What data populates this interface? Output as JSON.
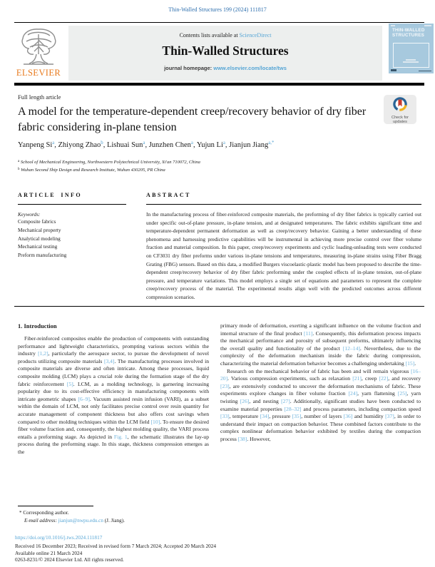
{
  "page": {
    "journal_citation": "Thin-Walled Structures 199 (2024) 111817"
  },
  "banner": {
    "contents_prefix": "Contents lists available at ",
    "sciencedirect_link": "ScienceDirect",
    "journal_title": "Thin-Walled Structures",
    "homepage_prefix": "journal homepage: ",
    "homepage_url": "www.elsevier.com/locate/tws",
    "elsevier_label": "ELSEVIER",
    "cover": {
      "title_line1": "THIN-WALLED",
      "title_line2": "STRUCTURES"
    }
  },
  "badge": {
    "line1": "Check for",
    "line2": "updates"
  },
  "article": {
    "type_label": "Full length article",
    "title": "A model for the temperature-dependent creep/recovery behavior of dry fiber fabric considering in-plane tension",
    "authors": [
      {
        "name": "Yanpeng Si",
        "sup": "a",
        "sep": ", "
      },
      {
        "name": "Zhiyong Zhao",
        "sup": "b",
        "sep": ", "
      },
      {
        "name": "Lishuai Sun",
        "sup": "a",
        "sep": ", "
      },
      {
        "name": "Junzhen Chen",
        "sup": "a",
        "sep": ", "
      },
      {
        "name": "Yujun Li",
        "sup": "a",
        "sep": ", "
      },
      {
        "name": "Jianjun Jiang",
        "sup": "a,*",
        "sep": ""
      }
    ],
    "affiliations": [
      {
        "sup": "a",
        "text": " School of Mechanical Engineering, Northwestern Polytechnical University, Xi'an 710072, China"
      },
      {
        "sup": "b",
        "text": " Wuhan Second Ship Design and Research Institute, Wuhan 430205, PR China"
      }
    ]
  },
  "article_info": {
    "heading": "ARTICLE INFO",
    "keywords_label": "Keywords:",
    "keywords": [
      "Composite fabrics",
      "Mechanical property",
      "Analytical modeling",
      "Mechanical testing",
      "Preform manufacturing"
    ]
  },
  "abstract": {
    "heading": "ABSTRACT",
    "text": "In the manufacturing process of fiber-reinforced composite materials, the preforming of dry fiber fabrics is typically carried out under specific out-of-plane pressure, in-plane tension, and at designated temperatures. The fabric exhibits significant time and temperature-dependent permanent deformation as well as creep/recovery behavior. Gaining a better understanding of these phenomena and harnessing predictive capabilities will be instrumental in achieving more precise control over fiber volume fraction and material composition. In this paper, creep/recovery experiments and cyclic loading-unloading tests were conducted on CF3031 dry fiber preforms under various in-plane tensions and temperatures, measuring in-plane strains using Fiber Bragg Grating (FBG) sensors. Based on this data, a modified Burgers viscoelastic-plastic model has been proposed to describe the time-dependent creep/recovery behavior of dry fiber fabric preforming under the coupled effects of in-plane tension, out-of-plane pressure, and temperature variations. This model employs a single set of equations and parameters to represent the complete creep/recovery process of the material. The experimental results align well with the predicted outcomes across different compression scenarios."
  },
  "introduction": {
    "heading": "1. Introduction",
    "left_paragraph": "Fiber-reinforced composites enable the production of components with outstanding performance and lightweight characteristics, prompting various sectors within the industry [1,2], particularly the aerospace sector, to pursue the development of novel products utilizing composite materials [3,4]. The manufacturing processes involved in composite materials are diverse and often intricate. Among these processes, liquid composite molding (LCM) plays a crucial role during the formation stage of the dry fabric reinforcement [5]. LCM, as a molding technology, is garnering increasing popularity due to its cost-effective efficiency in manufacturing components with intricate geometric shapes [6–9]. Vacuum assisted resin infusion (VARI), as a subset within the domain of LCM, not only facilitates precise control over resin quantity for accurate management of component thickness but also offers cost savings when compared to other molding techniques within the LCM field [10]. To ensure the desired fiber volume fraction and, consequently, the highest molding quality, the VARI process entails a preforming stage. As depicted in Fig. 1, the schematic illustrates the lay-up process during the preforming stage. In this stage, thickness compression emerges as the",
    "right_paragraph_1": "primary mode of deformation, exerting a significant influence on the volume fraction and internal structure of the final product [11]. Consequently, this deformation process impacts the mechanical performance and porosity of subsequent preforms, ultimately influencing the overall quality and functionality of the product [12–14]. Nevertheless, due to the complexity of the deformation mechanism inside the fabric during compression, characterizing the material deformation behavior becomes a challenging undertaking [15].",
    "right_paragraph_2": "Research on the mechanical behavior of fabric has been and will remain vigorous [16–20]. Various compression experiments, such as relaxation [21], creep [22], and recovery [23], are extensively conducted to uncover the deformation mechanisms of fabric. These experiments explore changes in fiber volume fraction [24], yarn flattening [25], yarn twisting [26], and nesting [27]. Additionally, significant studies have been conducted to examine material properties [28–32] and process parameters, including compaction speed [33], temperature [34], pressure [35], number of layers [36] and humidity [37], in order to understand their impact on compaction behavior. These combined factors contribute to the complex nonlinear deformation behavior exhibited by textiles during the compaction process [38]. However,"
  },
  "footnote": {
    "marker": "* Corresponding author.",
    "email_label": "E-mail address:",
    "email": "jianjun@nwpu.edu.cn",
    "email_suffix": " (J. Jiang)."
  },
  "footer": {
    "doi": "https://doi.org/10.1016/j.tws.2024.111817",
    "received": "Received 16 December 2023; Received in revised form 7 March 2024; Accepted 20 March 2024",
    "available": "Available online 21 March 2024",
    "copyright": "0263-8231/© 2024 Elsevier Ltd. All rights reserved."
  },
  "icons": [
    {
      "name": "elsevier-tree-logo"
    },
    {
      "name": "check-for-updates-icon"
    }
  ],
  "colors": {
    "link_blue": "#55a5d5",
    "citation_blue": "#6bb1db",
    "header_citation_blue": "#2e6fae",
    "elsevier_orange": "#e87a1e",
    "banner_gray": "#edefee",
    "cover_blue": "#a7c9de"
  }
}
